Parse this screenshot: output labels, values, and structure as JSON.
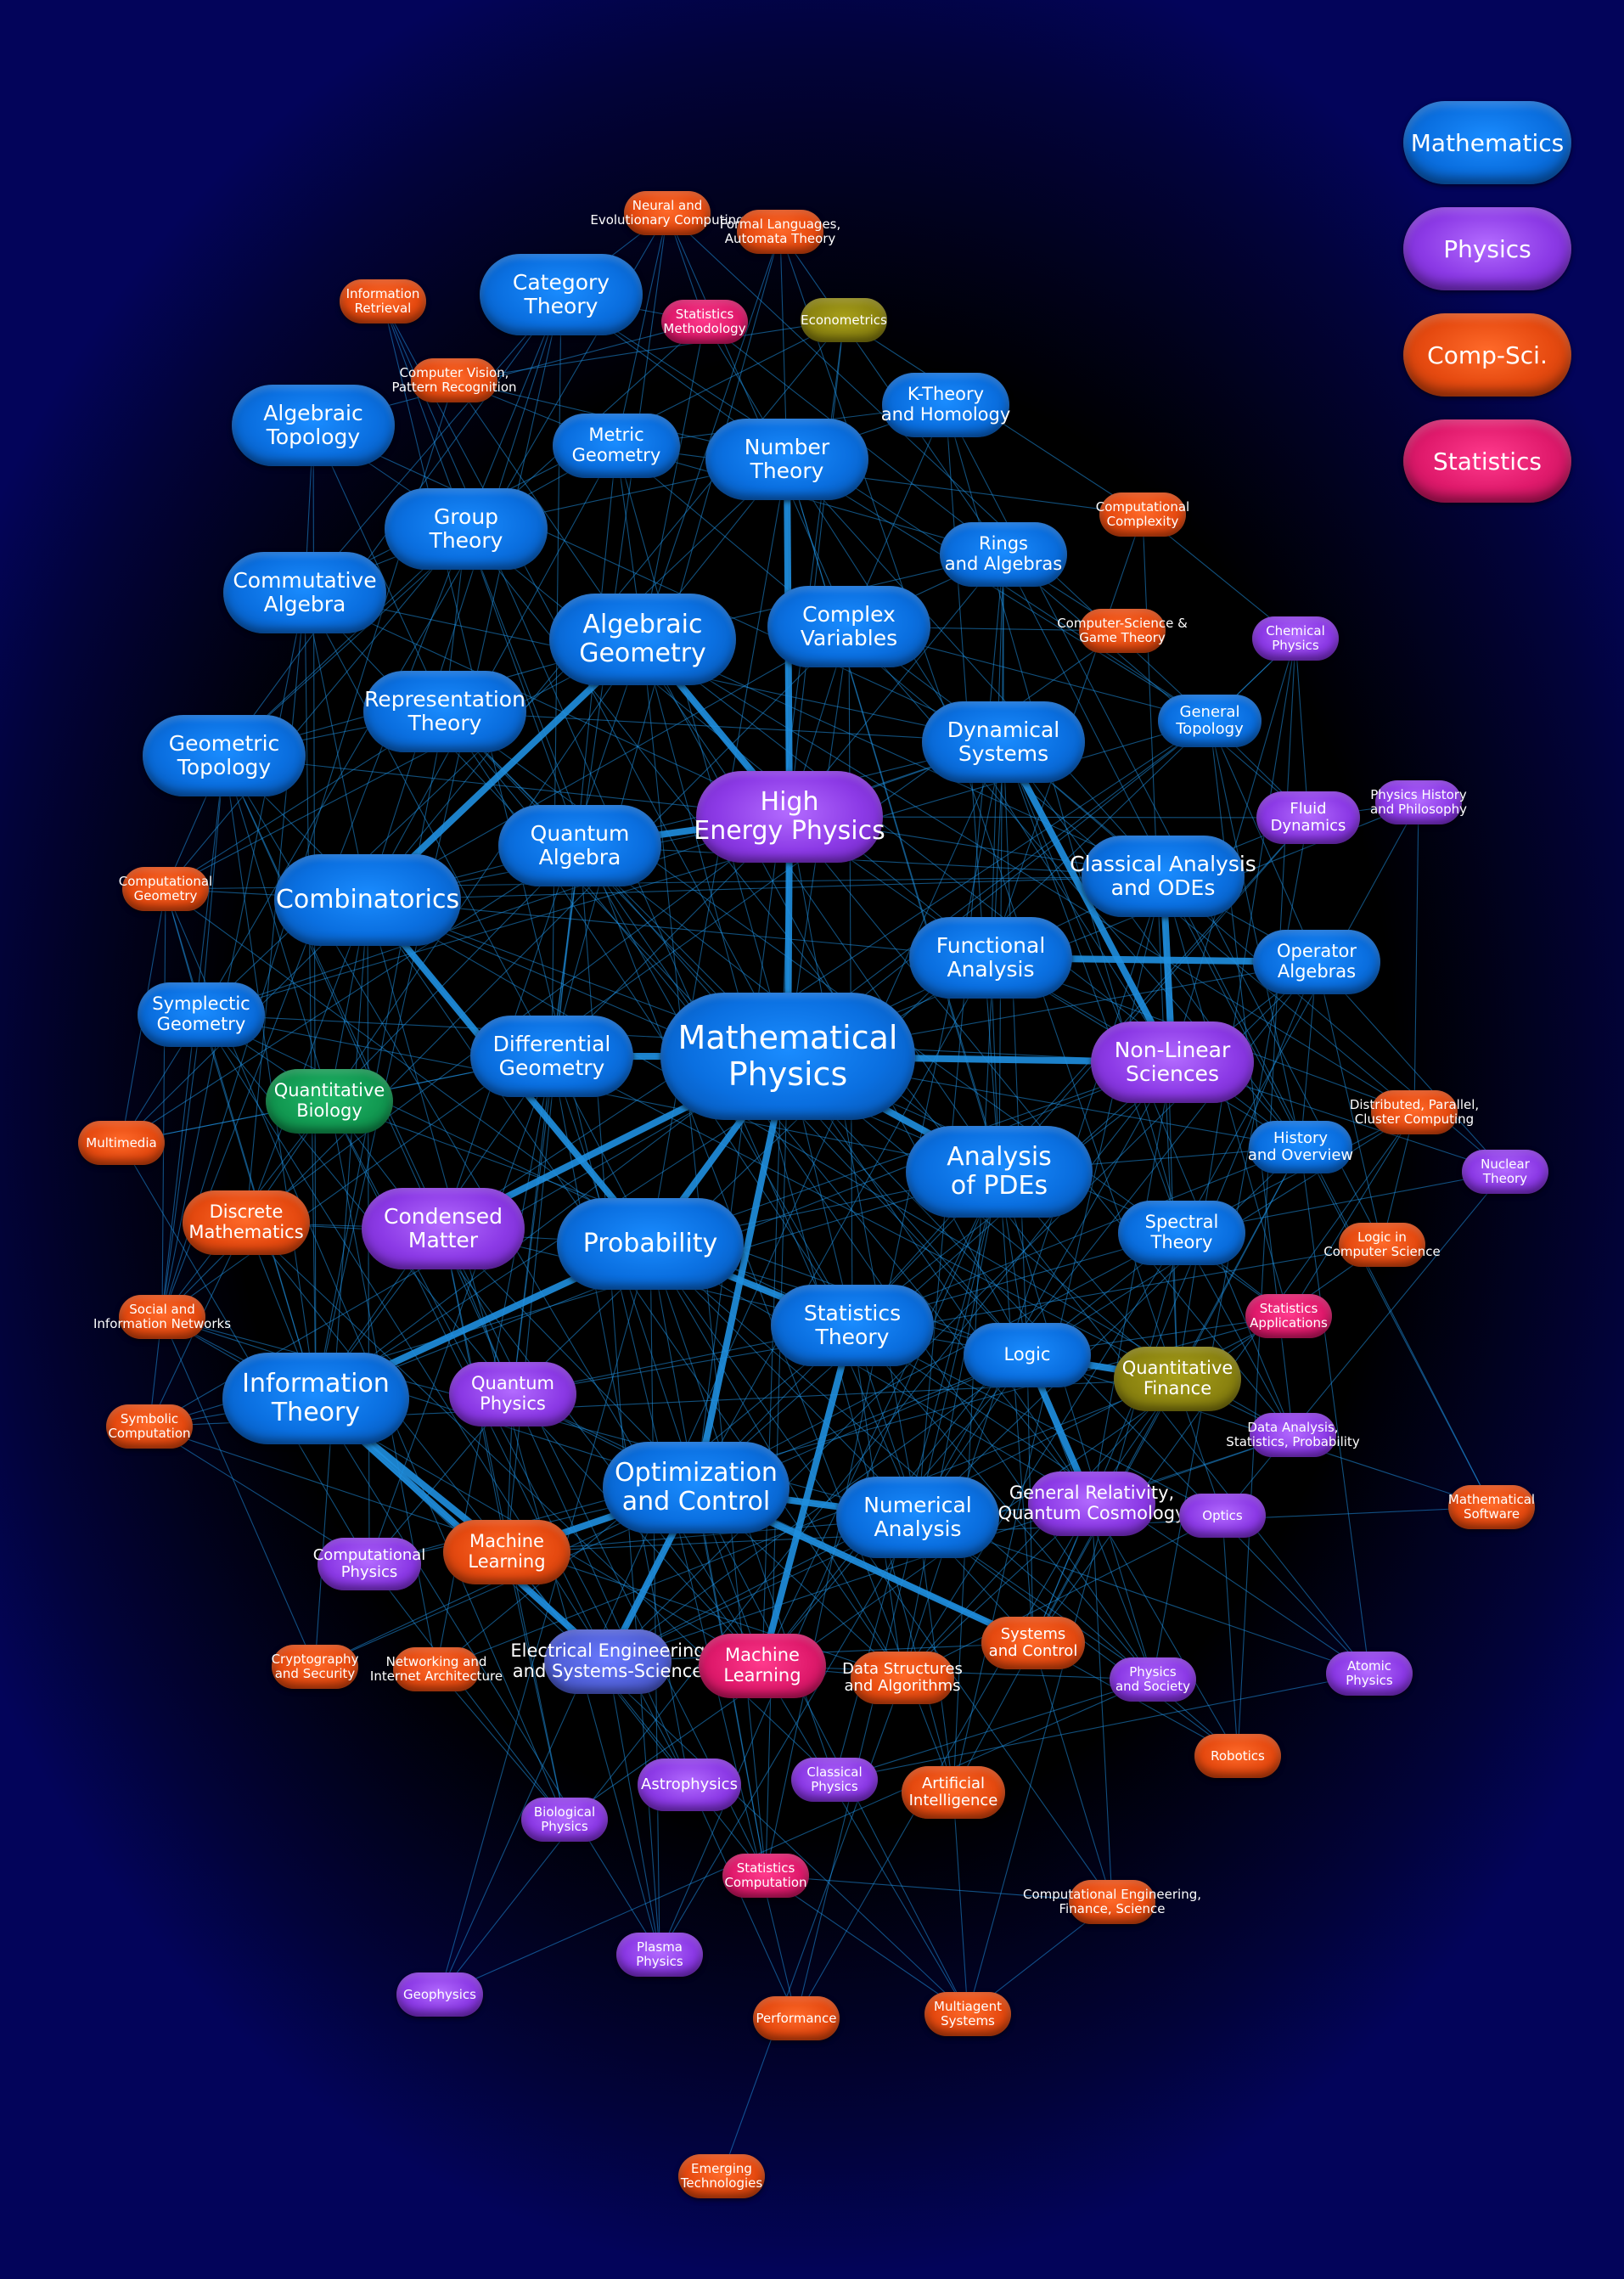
{
  "legend": [
    {
      "label": "Mathematics",
      "type": "math"
    },
    {
      "label": "Physics",
      "type": "phys"
    },
    {
      "label": "Comp-Sci.",
      "type": "cs"
    },
    {
      "label": "Statistics",
      "type": "stat"
    }
  ],
  "colors": {
    "edge": "#1f8fe0",
    "background": "#000000",
    "background_edge": "#03045a"
  },
  "nodes": [
    {
      "id": "mp",
      "label": "Mathematical\nPhysics",
      "type": "math",
      "size": "xl"
    },
    {
      "id": "hep",
      "label": "High\nEnergy Physics",
      "type": "phys",
      "size": "l"
    },
    {
      "id": "comb",
      "label": "Combinatorics",
      "type": "math",
      "size": "l"
    },
    {
      "id": "ag",
      "label": "Algebraic\nGeometry",
      "type": "math",
      "size": "l"
    },
    {
      "id": "prob",
      "label": "Probability",
      "type": "math",
      "size": "l"
    },
    {
      "id": "it",
      "label": "Information\nTheory",
      "type": "math",
      "size": "l"
    },
    {
      "id": "opt",
      "label": "Optimization\nand Control",
      "type": "math",
      "size": "l"
    },
    {
      "id": "apde",
      "label": "Analysis\nof PDEs",
      "type": "math",
      "size": "l"
    },
    {
      "id": "ds",
      "label": "Dynamical\nSystems",
      "type": "math",
      "size": "m"
    },
    {
      "id": "dg",
      "label": "Differential\nGeometry",
      "type": "math",
      "size": "m"
    },
    {
      "id": "qa",
      "label": "Quantum\nAlgebra",
      "type": "math",
      "size": "m"
    },
    {
      "id": "fa",
      "label": "Functional\nAnalysis",
      "type": "math",
      "size": "m"
    },
    {
      "id": "st",
      "label": "Statistics\nTheory",
      "type": "math",
      "size": "m"
    },
    {
      "id": "na",
      "label": "Numerical\nAnalysis",
      "type": "math",
      "size": "m"
    },
    {
      "id": "nt",
      "label": "Number\nTheory",
      "type": "math",
      "size": "m"
    },
    {
      "id": "gt",
      "label": "Group\nTheory",
      "type": "math",
      "size": "m"
    },
    {
      "id": "rt",
      "label": "Representation\nTheory",
      "type": "math",
      "size": "m"
    },
    {
      "id": "cv",
      "label": "Complex\nVariables",
      "type": "math",
      "size": "m"
    },
    {
      "id": "atop",
      "label": "Algebraic\nTopology",
      "type": "math",
      "size": "m"
    },
    {
      "id": "ca",
      "label": "Commutative\nAlgebra",
      "type": "math",
      "size": "m"
    },
    {
      "id": "geot",
      "label": "Geometric\nTopology",
      "type": "math",
      "size": "m"
    },
    {
      "id": "ct",
      "label": "Category\nTheory",
      "type": "math",
      "size": "m"
    },
    {
      "id": "mg",
      "label": "Metric\nGeometry",
      "type": "math",
      "size": "s"
    },
    {
      "id": "kt",
      "label": "K-Theory\nand Homology",
      "type": "math",
      "size": "s"
    },
    {
      "id": "ra",
      "label": "Rings\nand Algebras",
      "type": "math",
      "size": "s"
    },
    {
      "id": "gtop",
      "label": "General\nTopology",
      "type": "math",
      "size": "xs"
    },
    {
      "id": "cao",
      "label": "Classical Analysis\nand ODEs",
      "type": "math",
      "size": "m"
    },
    {
      "id": "oa",
      "label": "Operator\nAlgebras",
      "type": "math",
      "size": "s"
    },
    {
      "id": "sg",
      "label": "Symplectic\nGeometry",
      "type": "math",
      "size": "s"
    },
    {
      "id": "ho",
      "label": "History\nand Overview",
      "type": "math",
      "size": "xs"
    },
    {
      "id": "spt",
      "label": "Spectral\nTheory",
      "type": "math",
      "size": "s"
    },
    {
      "id": "logic",
      "label": "Logic",
      "type": "math",
      "size": "s"
    },
    {
      "id": "nls",
      "label": "Non-Linear\nSciences",
      "type": "phys",
      "size": "m"
    },
    {
      "id": "cm",
      "label": "Condensed\nMatter",
      "type": "phys",
      "size": "m"
    },
    {
      "id": "qp",
      "label": "Quantum\nPhysics",
      "type": "phys",
      "size": "s"
    },
    {
      "id": "fd",
      "label": "Fluid\nDynamics",
      "type": "phys",
      "size": "xs"
    },
    {
      "id": "chp",
      "label": "Chemical\nPhysics",
      "type": "phys",
      "size": "xxs"
    },
    {
      "id": "phhp",
      "label": "Physics History\nand Philosophy",
      "type": "phys",
      "size": "xxs"
    },
    {
      "id": "nuc",
      "label": "Nuclear\nTheory",
      "type": "phys",
      "size": "xxs"
    },
    {
      "id": "grqc",
      "label": "General Relativity,\nQuantum Cosmology",
      "type": "phys",
      "size": "s"
    },
    {
      "id": "optics",
      "label": "Optics",
      "type": "phys",
      "size": "xxs"
    },
    {
      "id": "cphys",
      "label": "Computational\nPhysics",
      "type": "phys",
      "size": "xs"
    },
    {
      "id": "pas",
      "label": "Physics\nand Society",
      "type": "phys",
      "size": "xxs"
    },
    {
      "id": "atom",
      "label": "Atomic\nPhysics",
      "type": "phys",
      "size": "xxs"
    },
    {
      "id": "astro",
      "label": "Astrophysics",
      "type": "phys",
      "size": "xs"
    },
    {
      "id": "clph",
      "label": "Classical\nPhysics",
      "type": "phys",
      "size": "xxs"
    },
    {
      "id": "bph",
      "label": "Biological\nPhysics",
      "type": "phys",
      "size": "xxs"
    },
    {
      "id": "plas",
      "label": "Plasma\nPhysics",
      "type": "phys",
      "size": "xxs"
    },
    {
      "id": "geo",
      "label": "Geophysics",
      "type": "phys",
      "size": "xxs"
    },
    {
      "id": "dasp",
      "label": "Data Analysis,\nStatistics, Probability",
      "type": "phys",
      "size": "xxs"
    },
    {
      "id": "qb",
      "label": "Quantitative\nBiology",
      "type": "bio",
      "size": "s"
    },
    {
      "id": "qf",
      "label": "Quantitative\nFinance",
      "type": "econ",
      "size": "s"
    },
    {
      "id": "econ",
      "label": "Econometrics",
      "type": "econ",
      "size": "xxs"
    },
    {
      "id": "eess",
      "label": "Electrical Engineering\nand Systems-Science",
      "type": "ee",
      "size": "s"
    },
    {
      "id": "ml",
      "label": "Machine\nLearning",
      "type": "cs",
      "size": "s"
    },
    {
      "id": "sml",
      "label": "Machine\nLearning",
      "type": "stat",
      "size": "s"
    },
    {
      "id": "dm",
      "label": "Discrete\nMathematics",
      "type": "cs",
      "size": "s"
    },
    {
      "id": "cc",
      "label": "Computational\nComplexity",
      "type": "cs",
      "size": "xxs"
    },
    {
      "id": "cgt",
      "label": "Computer-Science &\nGame Theory",
      "type": "cs",
      "size": "xxs"
    },
    {
      "id": "cvpr",
      "label": "Computer Vision,\nPattern Recognition",
      "type": "cs",
      "size": "xxs"
    },
    {
      "id": "ir",
      "label": "Information\nRetrieval",
      "type": "cs",
      "size": "xxs"
    },
    {
      "id": "ne",
      "label": "Neural and\nEvolutionary Computing",
      "type": "cs",
      "size": "xxs"
    },
    {
      "id": "fl",
      "label": "Formal Languages,\nAutomata Theory",
      "type": "cs",
      "size": "xxs"
    },
    {
      "id": "cg",
      "label": "Computational\nGeometry",
      "type": "cs",
      "size": "xxs"
    },
    {
      "id": "mm",
      "label": "Multimedia",
      "type": "cs",
      "size": "xxs"
    },
    {
      "id": "si",
      "label": "Social and\nInformation Networks",
      "type": "cs",
      "size": "xxs"
    },
    {
      "id": "sc",
      "label": "Symbolic\nComputation",
      "type": "cs",
      "size": "xxs"
    },
    {
      "id": "dpc",
      "label": "Distributed, Parallel,\nCluster Computing",
      "type": "cs",
      "size": "xxs"
    },
    {
      "id": "lcs",
      "label": "Logic in\nComputer Science",
      "type": "cs",
      "size": "xxs"
    },
    {
      "id": "ms",
      "label": "Mathematical\nSoftware",
      "type": "cs",
      "size": "xxs"
    },
    {
      "id": "sys",
      "label": "Systems\nand Control",
      "type": "cs",
      "size": "xs"
    },
    {
      "id": "dsa",
      "label": "Data Structures\nand Algorithms",
      "type": "cs",
      "size": "xs"
    },
    {
      "id": "crypt",
      "label": "Cryptography\nand Security",
      "type": "cs",
      "size": "xxs"
    },
    {
      "id": "ni",
      "label": "Networking and\nInternet Architecture",
      "type": "cs",
      "size": "xxs"
    },
    {
      "id": "ai",
      "label": "Artificial\nIntelligence",
      "type": "cs",
      "size": "xs"
    },
    {
      "id": "rob",
      "label": "Robotics",
      "type": "cs",
      "size": "xxs"
    },
    {
      "id": "cefs",
      "label": "Computational Engineering,\nFinance, Science",
      "type": "cs",
      "size": "xxs"
    },
    {
      "id": "perf",
      "label": "Performance",
      "type": "cs",
      "size": "xxs"
    },
    {
      "id": "mas",
      "label": "Multiagent\nSystems",
      "type": "cs",
      "size": "xxs"
    },
    {
      "id": "et",
      "label": "Emerging\nTechnologies",
      "type": "cs",
      "size": "xxs"
    },
    {
      "id": "sm",
      "label": "Statistics\nMethodology",
      "type": "stat",
      "size": "xxs"
    },
    {
      "id": "sa",
      "label": "Statistics\nApplications",
      "type": "stat",
      "size": "xxs"
    },
    {
      "id": "sco",
      "label": "Statistics\nComputation",
      "type": "stat",
      "size": "xxs"
    }
  ],
  "strong_edges": [
    [
      "mp",
      "hep"
    ],
    [
      "mp",
      "nls"
    ],
    [
      "mp",
      "prob"
    ],
    [
      "mp",
      "cm"
    ],
    [
      "mp",
      "apde"
    ],
    [
      "mp",
      "dg"
    ],
    [
      "mp",
      "opt"
    ],
    [
      "hep",
      "ag"
    ],
    [
      "hep",
      "qa"
    ],
    [
      "hep",
      "nt"
    ],
    [
      "prob",
      "it"
    ],
    [
      "prob",
      "st"
    ],
    [
      "opt",
      "ml"
    ],
    [
      "opt",
      "eess"
    ],
    [
      "opt",
      "na"
    ],
    [
      "opt",
      "sys"
    ],
    [
      "it",
      "ml"
    ],
    [
      "it",
      "eess"
    ],
    [
      "ds",
      "nls"
    ],
    [
      "cao",
      "nls"
    ],
    [
      "logic",
      "qf"
    ],
    [
      "prob",
      "comb"
    ],
    [
      "ag",
      "comb"
    ],
    [
      "fa",
      "oa"
    ],
    [
      "st",
      "sml"
    ],
    [
      "logic",
      "grqc"
    ]
  ]
}
